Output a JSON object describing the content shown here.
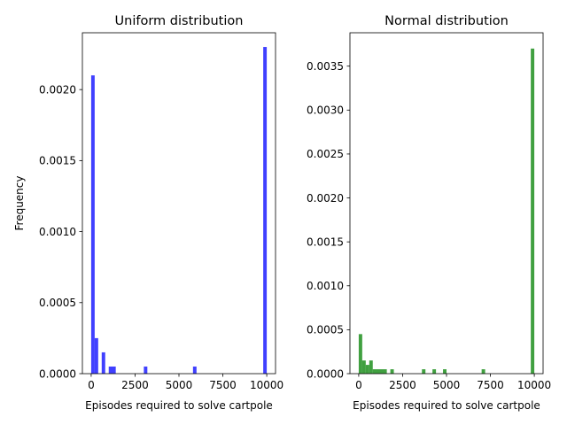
{
  "chart_data": [
    {
      "type": "bar",
      "title": "Uniform distribution",
      "xlabel": "Episodes required to solve cartpole",
      "ylabel": "Frequency",
      "color": "#0000ff",
      "xlim": [
        -500,
        10500
      ],
      "ylim": [
        0,
        0.0024
      ],
      "xticks": [
        0,
        2500,
        5000,
        7500,
        10000
      ],
      "xtick_labels": [
        "0",
        "2500",
        "5000",
        "7500",
        "10000"
      ],
      "yticks": [
        0,
        0.0005,
        0.001,
        0.0015,
        0.002
      ],
      "ytick_labels": [
        "0.0000",
        "0.0005",
        "0.0010",
        "0.0015",
        "0.0020"
      ],
      "bin_width": 200,
      "bins": [
        {
          "x0": 0,
          "x1": 200,
          "value": 0.0021
        },
        {
          "x0": 200,
          "x1": 400,
          "value": 0.00025
        },
        {
          "x0": 600,
          "x1": 800,
          "value": 0.00015
        },
        {
          "x0": 1000,
          "x1": 1400,
          "value": 5e-05
        },
        {
          "x0": 3000,
          "x1": 3200,
          "value": 5e-05
        },
        {
          "x0": 5800,
          "x1": 6000,
          "value": 5e-05
        },
        {
          "x0": 9800,
          "x1": 10000,
          "value": 0.0023
        }
      ]
    },
    {
      "type": "bar",
      "title": "Normal distribution",
      "xlabel": "Episodes required to solve cartpole",
      "ylabel": "",
      "color": "#008000",
      "xlim": [
        -500,
        10500
      ],
      "ylim": [
        0,
        0.00388
      ],
      "xticks": [
        0,
        2500,
        5000,
        7500,
        10000
      ],
      "xtick_labels": [
        "0",
        "2500",
        "5000",
        "7500",
        "10000"
      ],
      "yticks": [
        0,
        0.0005,
        0.001,
        0.0015,
        0.002,
        0.0025,
        0.003,
        0.0035
      ],
      "ytick_labels": [
        "0.0000",
        "0.0005",
        "0.0010",
        "0.0015",
        "0.0020",
        "0.0025",
        "0.0030",
        "0.0035"
      ],
      "bin_width": 200,
      "bins": [
        {
          "x0": 0,
          "x1": 200,
          "value": 0.00045
        },
        {
          "x0": 200,
          "x1": 400,
          "value": 0.00015
        },
        {
          "x0": 400,
          "x1": 600,
          "value": 0.0001
        },
        {
          "x0": 600,
          "x1": 800,
          "value": 0.00015
        },
        {
          "x0": 800,
          "x1": 1600,
          "value": 5e-05
        },
        {
          "x0": 1800,
          "x1": 2000,
          "value": 5e-05
        },
        {
          "x0": 3600,
          "x1": 3800,
          "value": 5e-05
        },
        {
          "x0": 4200,
          "x1": 4400,
          "value": 5e-05
        },
        {
          "x0": 4800,
          "x1": 5000,
          "value": 5e-05
        },
        {
          "x0": 7000,
          "x1": 7200,
          "value": 5e-05
        },
        {
          "x0": 9800,
          "x1": 10000,
          "value": 0.0037
        }
      ]
    }
  ]
}
